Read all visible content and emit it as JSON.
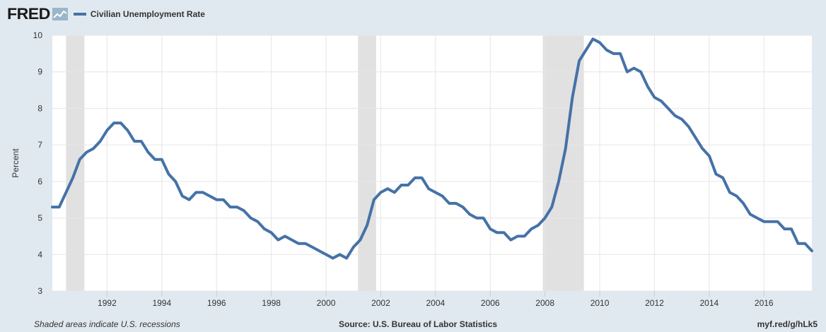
{
  "logo": {
    "text": "FRED"
  },
  "footer": {
    "recession_note": "Shaded areas indicate U.S. recessions",
    "source": "Source: U.S. Bureau of Labor Statistics",
    "short_url": "myf.red/g/hLk5"
  },
  "colors": {
    "line": "#4572a7",
    "recession": "#e1e1e1",
    "background": "#e1e9f0",
    "plot": "#ffffff"
  },
  "chart_data": {
    "type": "line",
    "title": "",
    "xlabel": "",
    "ylabel": "Percent",
    "xlim": [
      1990.0,
      2017.75
    ],
    "ylim": [
      3,
      10
    ],
    "yticks": [
      3,
      4,
      5,
      6,
      7,
      8,
      9,
      10
    ],
    "xticks": [
      "1992",
      "1994",
      "1996",
      "1998",
      "2000",
      "2002",
      "2004",
      "2006",
      "2008",
      "2010",
      "2012",
      "2014",
      "2016"
    ],
    "grid": true,
    "legend": "top-left",
    "recessions": [
      [
        1990.5,
        1991.17
      ],
      [
        2001.17,
        2001.83
      ],
      [
        2007.92,
        2009.42
      ]
    ],
    "series": [
      {
        "name": "Civilian Unemployment Rate",
        "x": [
          1990.0,
          1990.25,
          1990.5,
          1990.75,
          1991.0,
          1991.25,
          1991.5,
          1991.75,
          1992.0,
          1992.25,
          1992.5,
          1992.75,
          1993.0,
          1993.25,
          1993.5,
          1993.75,
          1994.0,
          1994.25,
          1994.5,
          1994.75,
          1995.0,
          1995.25,
          1995.5,
          1995.75,
          1996.0,
          1996.25,
          1996.5,
          1996.75,
          1997.0,
          1997.25,
          1997.5,
          1997.75,
          1998.0,
          1998.25,
          1998.5,
          1998.75,
          1999.0,
          1999.25,
          1999.5,
          1999.75,
          2000.0,
          2000.25,
          2000.5,
          2000.75,
          2001.0,
          2001.25,
          2001.5,
          2001.75,
          2002.0,
          2002.25,
          2002.5,
          2002.75,
          2003.0,
          2003.25,
          2003.5,
          2003.75,
          2004.0,
          2004.25,
          2004.5,
          2004.75,
          2005.0,
          2005.25,
          2005.5,
          2005.75,
          2006.0,
          2006.25,
          2006.5,
          2006.75,
          2007.0,
          2007.25,
          2007.5,
          2007.75,
          2008.0,
          2008.25,
          2008.5,
          2008.75,
          2009.0,
          2009.25,
          2009.5,
          2009.75,
          2010.0,
          2010.25,
          2010.5,
          2010.75,
          2011.0,
          2011.25,
          2011.5,
          2011.75,
          2012.0,
          2012.25,
          2012.5,
          2012.75,
          2013.0,
          2013.25,
          2013.5,
          2013.75,
          2014.0,
          2014.25,
          2014.5,
          2014.75,
          2015.0,
          2015.25,
          2015.5,
          2015.75,
          2016.0,
          2016.25,
          2016.5,
          2016.75,
          2017.0,
          2017.25,
          2017.5,
          2017.75
        ],
        "values": [
          5.3,
          5.3,
          5.7,
          6.1,
          6.6,
          6.8,
          6.9,
          7.1,
          7.4,
          7.6,
          7.6,
          7.4,
          7.1,
          7.1,
          6.8,
          6.6,
          6.6,
          6.2,
          6.0,
          5.6,
          5.5,
          5.7,
          5.7,
          5.6,
          5.5,
          5.5,
          5.3,
          5.3,
          5.2,
          5.0,
          4.9,
          4.7,
          4.6,
          4.4,
          4.5,
          4.4,
          4.3,
          4.3,
          4.2,
          4.1,
          4.0,
          3.9,
          4.0,
          3.9,
          4.2,
          4.4,
          4.8,
          5.5,
          5.7,
          5.8,
          5.7,
          5.9,
          5.9,
          6.1,
          6.1,
          5.8,
          5.7,
          5.6,
          5.4,
          5.4,
          5.3,
          5.1,
          5.0,
          5.0,
          4.7,
          4.6,
          4.6,
          4.4,
          4.5,
          4.5,
          4.7,
          4.8,
          5.0,
          5.3,
          6.0,
          6.9,
          8.3,
          9.3,
          9.6,
          9.9,
          9.8,
          9.6,
          9.5,
          9.5,
          9.0,
          9.1,
          9.0,
          8.6,
          8.3,
          8.2,
          8.0,
          7.8,
          7.7,
          7.5,
          7.2,
          6.9,
          6.7,
          6.2,
          6.1,
          5.7,
          5.6,
          5.4,
          5.1,
          5.0,
          4.9,
          4.9,
          4.9,
          4.7,
          4.7,
          4.3,
          4.3,
          4.1
        ]
      }
    ]
  }
}
